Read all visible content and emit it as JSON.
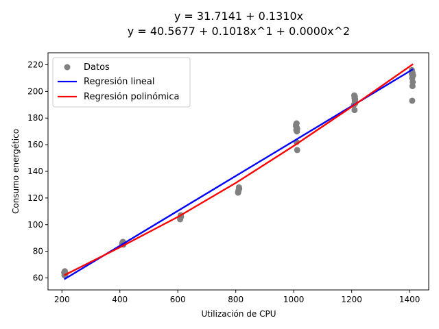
{
  "chart_data": {
    "type": "scatter",
    "title": [
      "y = 31.7141 + 0.1310x",
      "y = 40.5677 + 0.1018x^1 + 0.0000x^2"
    ],
    "xlabel": "Utilización de CPU",
    "ylabel": "Consumo energético",
    "xlim": [
      152,
      1466
    ],
    "ylim": [
      51,
      229
    ],
    "xticks": [
      200,
      400,
      600,
      800,
      1000,
      1200,
      1400
    ],
    "yticks": [
      60,
      80,
      100,
      120,
      140,
      160,
      180,
      200,
      220
    ],
    "grid": false,
    "legend_position": "top-left",
    "series": [
      {
        "name": "Datos",
        "type": "scatter",
        "color": "#808080",
        "x": [
          208,
          210,
          212,
          209,
          211,
          408,
          410,
          412,
          409,
          411,
          608,
          610,
          609,
          611,
          610,
          808,
          810,
          812,
          809,
          811,
          1008,
          1010,
          1012,
          1009,
          1011,
          1010,
          1012,
          1008,
          1010,
          1209,
          1210,
          1211,
          1212,
          1208,
          1210,
          1211,
          1212,
          1408,
          1410,
          1412,
          1409,
          1411,
          1410,
          1409,
          1408
        ],
        "y": [
          64,
          65,
          63,
          62,
          64,
          86,
          87,
          85,
          86,
          87,
          104,
          106,
          105,
          106,
          107,
          124,
          126,
          127,
          125,
          128,
          175,
          173,
          172,
          171,
          170,
          162,
          156,
          174,
          176,
          197,
          195,
          193,
          191,
          190,
          186,
          196,
          194,
          216,
          214,
          212,
          210,
          207,
          204,
          193,
          213
        ]
      },
      {
        "name": "Regresión lineal",
        "type": "line",
        "color": "#0000ff",
        "x": [
          208,
          1412
        ],
        "y": [
          59.0,
          216.7
        ]
      },
      {
        "name": "Regresión polinómica",
        "type": "line",
        "color": "#ff0000",
        "x": [
          208,
          400,
          600,
          800,
          1000,
          1200,
          1412
        ],
        "y": [
          62.0,
          83.0,
          105.8,
          131.3,
          159.1,
          188.4,
          220.5
        ]
      }
    ]
  }
}
